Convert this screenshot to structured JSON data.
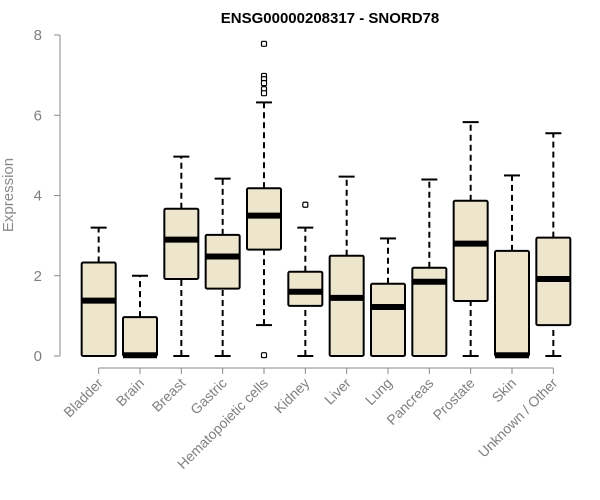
{
  "chart_data": {
    "type": "box",
    "title": "ENSG00000208317 - SNORD78",
    "xlabel": "",
    "ylabel": "Expression",
    "ylim": [
      0,
      8
    ],
    "yticks": [
      0,
      2,
      4,
      6,
      8
    ],
    "grid": false,
    "box_color": "#ede6cd",
    "line_color": "#000000",
    "categories": [
      "Bladder",
      "Brain",
      "Breast",
      "Gastric",
      "Hematopoietic cells",
      "Kidney",
      "Liver",
      "Lung",
      "Pancreas",
      "Prostate",
      "Skin",
      "Unknown / Other"
    ],
    "boxes": [
      {
        "min": 0,
        "q1": 0,
        "median": 1.38,
        "q3": 2.33,
        "max": 3.2,
        "outliers": []
      },
      {
        "min": 0,
        "q1": 0,
        "median": 0.02,
        "q3": 0.97,
        "max": 2.0,
        "outliers": []
      },
      {
        "min": 0,
        "q1": 1.92,
        "median": 2.9,
        "q3": 3.67,
        "max": 4.97,
        "outliers": []
      },
      {
        "min": 0,
        "q1": 1.68,
        "median": 2.48,
        "q3": 3.02,
        "max": 4.42,
        "outliers": []
      },
      {
        "min": 0.77,
        "q1": 2.65,
        "median": 3.5,
        "q3": 4.18,
        "max": 6.32,
        "outliers": [
          7.78,
          6.98,
          6.9,
          6.8,
          6.65,
          6.55,
          0.02
        ]
      },
      {
        "min": 0,
        "q1": 1.25,
        "median": 1.6,
        "q3": 2.1,
        "max": 3.2,
        "outliers": [
          3.77
        ]
      },
      {
        "min": 0,
        "q1": 0,
        "median": 1.45,
        "q3": 2.5,
        "max": 4.47,
        "outliers": []
      },
      {
        "min": 0,
        "q1": 0,
        "median": 1.22,
        "q3": 1.8,
        "max": 2.93,
        "outliers": []
      },
      {
        "min": 0,
        "q1": 0,
        "median": 1.85,
        "q3": 2.2,
        "max": 4.4,
        "outliers": []
      },
      {
        "min": 0,
        "q1": 1.37,
        "median": 2.8,
        "q3": 3.87,
        "max": 5.83,
        "outliers": []
      },
      {
        "min": 0,
        "q1": 0,
        "median": 0.02,
        "q3": 2.62,
        "max": 4.5,
        "outliers": []
      },
      {
        "min": 0,
        "q1": 0.77,
        "median": 1.92,
        "q3": 2.95,
        "max": 5.55,
        "outliers": []
      }
    ]
  }
}
